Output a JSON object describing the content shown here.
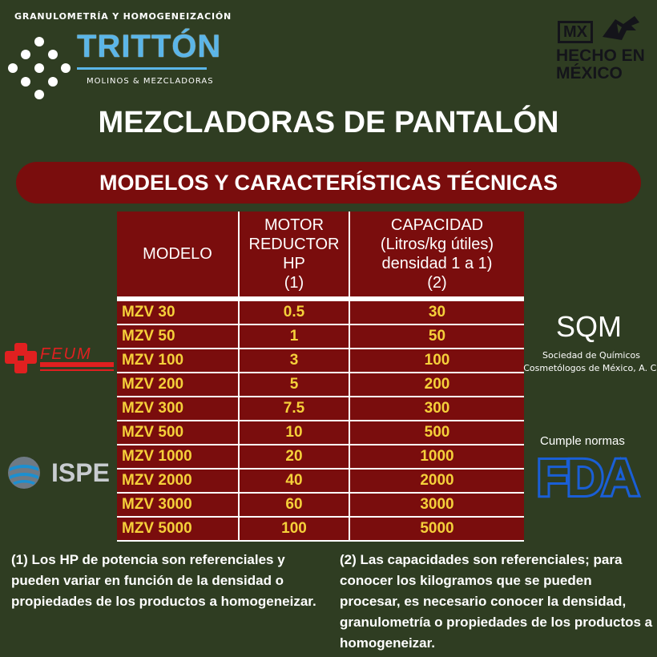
{
  "brand": {
    "tagline": "GRANULOMETRÍA Y HOMOGENEIZACIÓN",
    "name": "TRITTÓN",
    "subtitle": "MOLINOS & MEZCLADORAS"
  },
  "badge": {
    "mx": "MX",
    "line1": "HECHO EN",
    "line2": "MÉXICO"
  },
  "title": "MEZCLADORAS DE PANTALÓN",
  "banner": "MODELOS Y CARACTERÍSTICAS TÉCNICAS",
  "table": {
    "headers": [
      [
        "MODELO"
      ],
      [
        "MOTOR",
        "REDUCTOR",
        "HP",
        "(1)"
      ],
      [
        "CAPACIDAD",
        "(Litros/kg útiles)",
        "densidad 1 a 1)",
        "(2)"
      ]
    ],
    "rows": [
      [
        "MZV 30",
        "0.5",
        "30"
      ],
      [
        "MZV 50",
        "1",
        "50"
      ],
      [
        "MZV 100",
        "3",
        "100"
      ],
      [
        "MZV 200",
        "5",
        "200"
      ],
      [
        "MZV 300",
        "7.5",
        "300"
      ],
      [
        "MZV 500",
        "10",
        "500"
      ],
      [
        "MZV 1000",
        "20",
        "1000"
      ],
      [
        "MZV 2000",
        "40",
        "2000"
      ],
      [
        "MZV 3000",
        "60",
        "3000"
      ],
      [
        "MZV 5000",
        "100",
        "5000"
      ]
    ]
  },
  "logos": {
    "feum": "FEUM",
    "ispe": "ISPE",
    "sqm": "SQM",
    "sqm_caption_1": "Sociedad de Químicos",
    "sqm_caption_2": "Cosmetólogos de México, A. C.",
    "fda_label": "Cumple normas",
    "fda": "FDA"
  },
  "notes": {
    "note1": "(1) Los HP de potencia son referenciales y pueden variar en función de la densidad o propiedades de los productos a homogeneizar.",
    "note2": "(2) Las capacidades son referenciales; para conocer los kilogramos que se pueden procesar, es necesario conocer la densidad,  granulometría o propiedades de los productos a homogeneizar."
  },
  "colors": {
    "background": "#2f3d22",
    "banner": "#7a0d0d",
    "brand_blue": "#5bb6e8",
    "value_yellow": "#f5d03a"
  }
}
